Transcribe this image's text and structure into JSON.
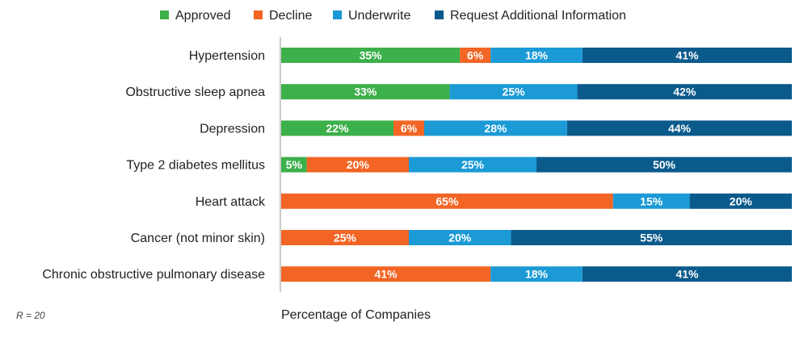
{
  "chart_data": {
    "type": "bar",
    "orientation": "horizontal",
    "stacked": true,
    "categories": [
      "Hypertension",
      "Obstructive sleep apnea",
      "Depression",
      "Type 2 diabetes mellitus",
      "Heart attack",
      "Cancer (not minor skin)",
      "Chronic obstructive pulmonary disease"
    ],
    "series": [
      {
        "name": "Approved",
        "color": "#3cb04a",
        "values": [
          35,
          33,
          22,
          5,
          0,
          0,
          0
        ]
      },
      {
        "name": "Decline",
        "color": "#f26524",
        "values": [
          6,
          0,
          6,
          20,
          65,
          25,
          41
        ]
      },
      {
        "name": "Underwrite",
        "color": "#1b9ad6",
        "values": [
          18,
          25,
          28,
          25,
          15,
          20,
          18
        ]
      },
      {
        "name": "Request Additional Information",
        "color": "#0b5a8c",
        "values": [
          41,
          42,
          44,
          50,
          20,
          55,
          41
        ]
      }
    ],
    "data_labels_suffix": "%",
    "xlabel": "Percentage of Companies",
    "ylabel": "",
    "xlim": [
      0,
      100
    ],
    "legend_position": "top",
    "note": "R = 20"
  }
}
